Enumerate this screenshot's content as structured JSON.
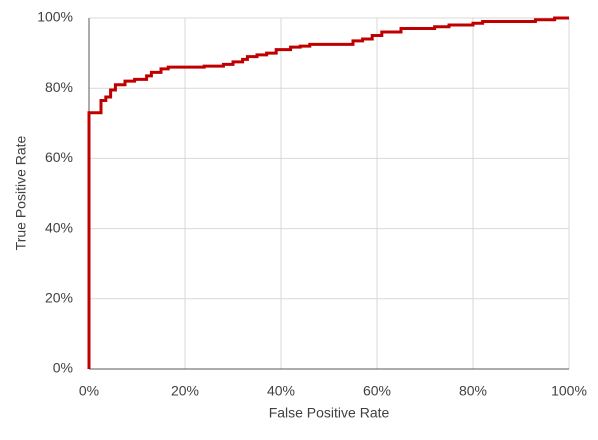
{
  "chart_data": {
    "type": "line",
    "x_label": "False Positive Rate",
    "y_label": "True Positive Rate",
    "color": "#c00000",
    "grid": true,
    "xlim": [
      0,
      100
    ],
    "ylim": [
      0,
      100
    ],
    "xticks": [
      {
        "value": 0,
        "label": "0%"
      },
      {
        "value": 20,
        "label": "20%"
      },
      {
        "value": 40,
        "label": "40%"
      },
      {
        "value": 60,
        "label": "60%"
      },
      {
        "value": 80,
        "label": "80%"
      },
      {
        "value": 100,
        "label": "100%"
      }
    ],
    "yticks": [
      {
        "value": 0,
        "label": "0%"
      },
      {
        "value": 20,
        "label": "20%"
      },
      {
        "value": 40,
        "label": "40%"
      },
      {
        "value": 60,
        "label": "60%"
      },
      {
        "value": 80,
        "label": "80%"
      },
      {
        "value": 100,
        "label": "100%"
      }
    ],
    "x": [
      0,
      0,
      2.5,
      2.5,
      3.5,
      3.5,
      4.5,
      4.5,
      5.5,
      5.5,
      7.5,
      7.5,
      9.5,
      9.5,
      12,
      12,
      13,
      13,
      15,
      15,
      16.5,
      16.5,
      24,
      24,
      28,
      28,
      30,
      30,
      32,
      32,
      33,
      33,
      35,
      35,
      37,
      37,
      39,
      39,
      42,
      42,
      44,
      44,
      46,
      46,
      55,
      55,
      57,
      57,
      59,
      59,
      61,
      61,
      65,
      65,
      72,
      72,
      75,
      75,
      80,
      80,
      82,
      82,
      93,
      93,
      97,
      97,
      100
    ],
    "values": [
      0,
      73,
      73,
      76.5,
      76.5,
      77.5,
      77.5,
      79.5,
      79.5,
      81,
      81,
      82,
      82,
      82.5,
      82.5,
      83.5,
      83.5,
      84.5,
      84.5,
      85.5,
      85.5,
      86,
      86,
      86.3,
      86.3,
      86.8,
      86.8,
      87.5,
      87.5,
      88.2,
      88.2,
      89,
      89,
      89.5,
      89.5,
      90,
      90,
      91,
      91,
      91.7,
      91.7,
      92,
      92,
      92.5,
      92.5,
      93.5,
      93.5,
      94,
      94,
      95,
      95,
      96,
      96,
      97,
      97,
      97.5,
      97.5,
      98,
      98,
      98.5,
      98.5,
      99,
      99,
      99.5,
      99.5,
      100,
      100
    ]
  }
}
